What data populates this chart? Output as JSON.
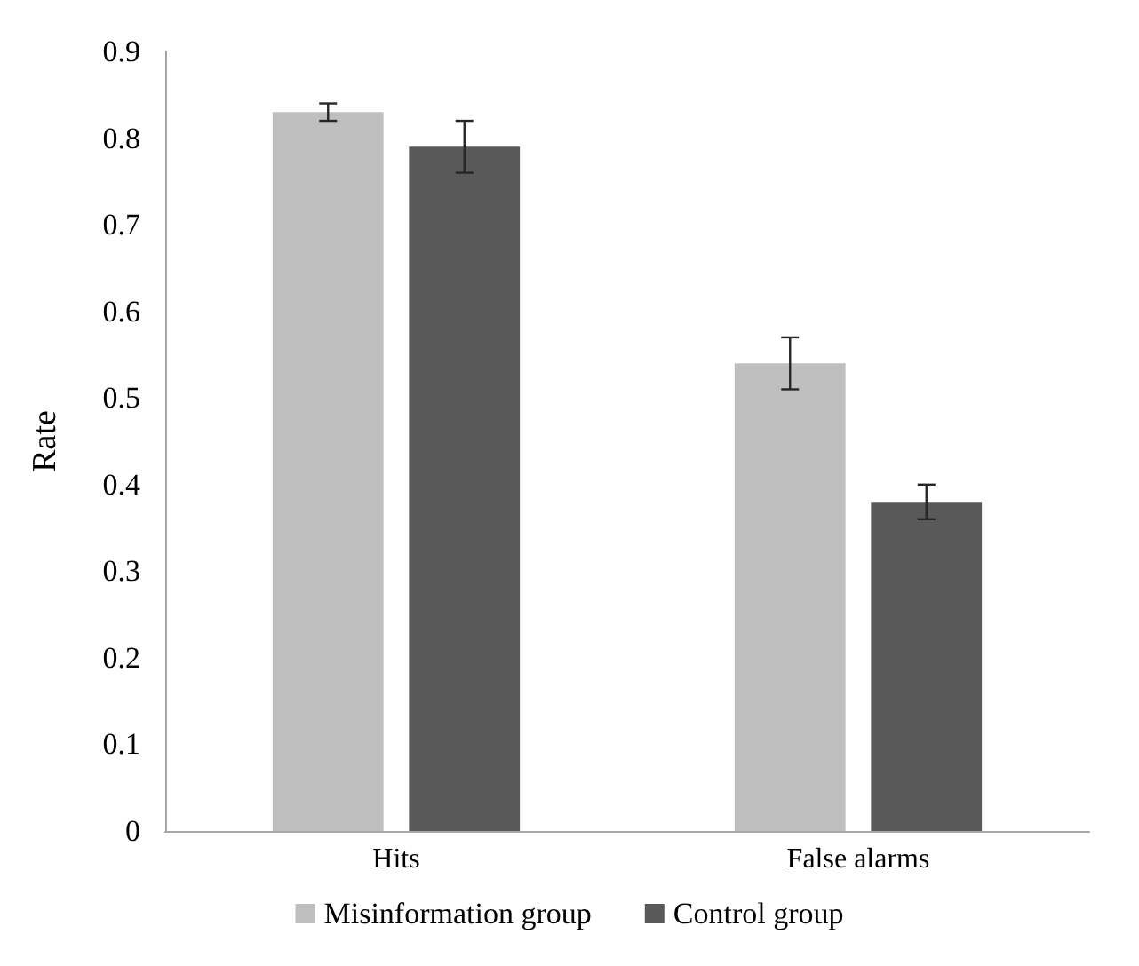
{
  "chart_data": {
    "type": "bar",
    "ylabel": "Rate",
    "categories": [
      "Hits",
      "False alarms"
    ],
    "series": [
      {
        "name": "Misinformation group",
        "color": "#bfbfbf",
        "values": [
          0.83,
          0.54
        ],
        "errors": [
          0.01,
          0.03
        ]
      },
      {
        "name": "Control group",
        "color": "#595959",
        "values": [
          0.79,
          0.38
        ],
        "errors": [
          0.03,
          0.02
        ]
      }
    ],
    "ylim": [
      0,
      0.9
    ],
    "yticks": [
      0,
      0.1,
      0.2,
      0.3,
      0.4,
      0.5,
      0.6,
      0.7,
      0.8,
      0.9
    ],
    "grid": false,
    "legend": "bottom"
  }
}
